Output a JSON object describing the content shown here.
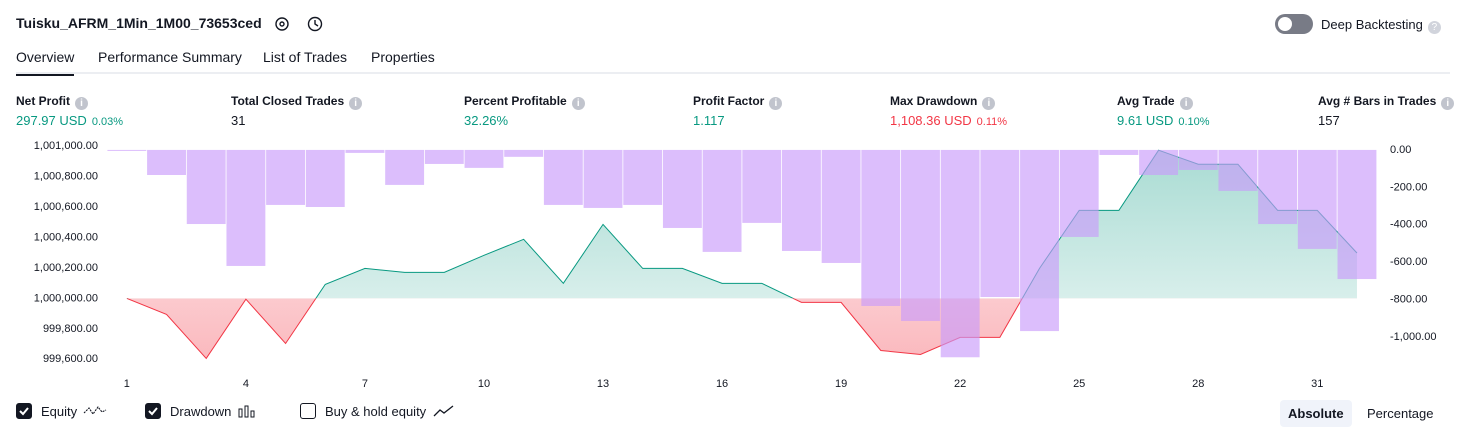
{
  "header": {
    "title": "Tuisku_AFRM_1Min_1M00_73653ced",
    "deep_backtesting": "Deep Backtesting",
    "deep_backtesting_on": false
  },
  "tabs": {
    "items": [
      "Overview",
      "Performance Summary",
      "List of Trades",
      "Properties"
    ],
    "active": 0
  },
  "metrics": [
    {
      "label": "Net Profit",
      "value": "297.97 USD",
      "percent": "0.03%"
    },
    {
      "label": "Total Closed Trades",
      "value": "31"
    },
    {
      "label": "Percent Profitable",
      "value": "32.26%"
    },
    {
      "label": "Profit Factor",
      "value": "1.117"
    },
    {
      "label": "Max Drawdown",
      "value": "1,108.36 USD",
      "percent": "0.11%"
    },
    {
      "label": "Avg Trade",
      "value": "9.61 USD",
      "percent": "0.10%"
    },
    {
      "label": "Avg # Bars in Trades",
      "value": "157"
    }
  ],
  "chart_data": {
    "type": "line",
    "x": [
      1,
      2,
      3,
      4,
      5,
      6,
      7,
      8,
      9,
      10,
      11,
      12,
      13,
      14,
      15,
      16,
      17,
      18,
      19,
      20,
      21,
      22,
      23,
      24,
      25,
      26,
      27,
      28,
      29,
      30,
      31,
      32
    ],
    "xlim": [
      0.55,
      32.53
    ],
    "xticks": [
      1,
      4,
      7,
      10,
      13,
      16,
      19,
      22,
      25,
      28,
      31
    ],
    "ylim": [
      999530,
      1001040
    ],
    "yticks": [
      {
        "value": 1001000,
        "label": "1,001,000.00"
      },
      {
        "value": 1000800,
        "label": "1,000,800.00"
      },
      {
        "value": 1000600,
        "label": "1,000,600.00"
      },
      {
        "value": 1000400,
        "label": "1,000,400.00"
      },
      {
        "value": 1000200,
        "label": "1,000,200.00"
      },
      {
        "value": 1000000,
        "label": "1,000,000.00"
      },
      {
        "value": 999800,
        "label": "999,800.00"
      },
      {
        "value": 999600,
        "label": "999,600.00"
      }
    ],
    "y2lim": [
      -1176,
      53
    ],
    "y2ticks": [
      {
        "value": 0,
        "label": "0.00"
      },
      {
        "value": -200,
        "label": "-200.00"
      },
      {
        "value": -400,
        "label": "-400.00"
      },
      {
        "value": -600,
        "label": "-600.00"
      },
      {
        "value": -800,
        "label": "-800.00"
      },
      {
        "value": -1000,
        "label": "-1,000.00"
      }
    ],
    "series": [
      {
        "name": "Equity",
        "type": "line",
        "color": "#089981",
        "negative_color": "#f23645",
        "values": [
          1000000,
          999895,
          999606,
          999995,
          999704,
          1000092,
          1000197,
          1000171,
          1000171,
          1000283,
          1000388,
          1000099,
          1000486,
          1000197,
          1000197,
          1000099,
          1000099,
          999974,
          999974,
          999658,
          999632,
          999744,
          999744,
          1000197,
          1000578,
          1000578,
          1000973,
          1000881,
          1000881,
          1000578,
          1000578,
          1000298
        ]
      },
      {
        "name": "Drawdown",
        "type": "bar",
        "axis": "y2",
        "color": "#c99bfa",
        "values": [
          0,
          -134,
          -396,
          -620,
          -294,
          -305,
          -16,
          -187,
          -75,
          -96,
          -37,
          -294,
          -310,
          -294,
          -417,
          -545,
          -390,
          -540,
          -604,
          -834,
          -914,
          -1108,
          -786,
          -968,
          -465,
          -27,
          -134,
          -107,
          -219,
          -396,
          -529,
          -690
        ]
      }
    ],
    "legend": [
      {
        "label": "Equity",
        "checked": true
      },
      {
        "label": "Drawdown",
        "checked": true
      },
      {
        "label": "Buy & hold equity",
        "checked": false
      }
    ]
  },
  "view_buttons": {
    "items": [
      "Absolute",
      "Percentage"
    ],
    "selected": 0
  }
}
